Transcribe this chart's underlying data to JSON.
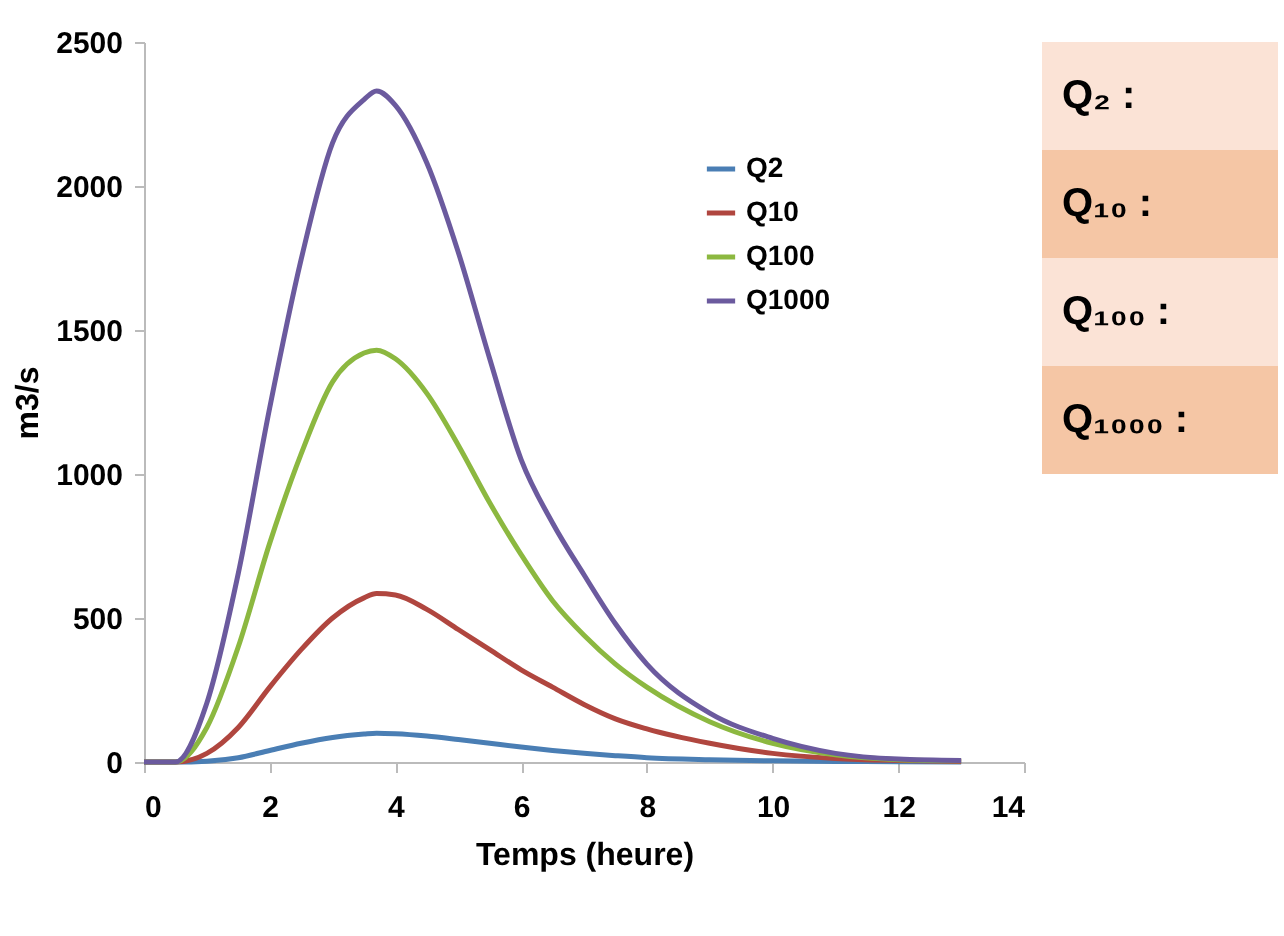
{
  "chart_data": {
    "type": "line",
    "xlabel": "Temps (heure)",
    "ylabel": "m3/s",
    "x": [
      0,
      0.5,
      1,
      1.5,
      2,
      2.5,
      3,
      3.5,
      3.7,
      4,
      4.5,
      5,
      5.5,
      6,
      6.5,
      7,
      7.5,
      8,
      9,
      10,
      11,
      12,
      13
    ],
    "series": [
      {
        "name": "Q2",
        "color": "#4a7eb4",
        "values": [
          0,
          0,
          3,
          15,
          40,
          65,
          85,
          97,
          100,
          98,
          90,
          78,
          65,
          52,
          40,
          30,
          22,
          15,
          8,
          4,
          2,
          1,
          0
        ]
      },
      {
        "name": "Q10",
        "color": "#b0463f",
        "values": [
          0,
          0,
          30,
          120,
          260,
          390,
          500,
          570,
          585,
          580,
          530,
          460,
          390,
          320,
          260,
          200,
          150,
          115,
          65,
          30,
          12,
          5,
          2
        ]
      },
      {
        "name": "Q100",
        "color": "#8cb840",
        "values": [
          0,
          0,
          120,
          400,
          760,
          1070,
          1320,
          1420,
          1430,
          1400,
          1280,
          1100,
          900,
          720,
          560,
          440,
          340,
          260,
          140,
          65,
          25,
          8,
          4
        ]
      },
      {
        "name": "Q1000",
        "color": "#6b5a9e",
        "values": [
          0,
          0,
          205,
          655,
          1230,
          1745,
          2150,
          2300,
          2330,
          2280,
          2080,
          1770,
          1400,
          1050,
          830,
          650,
          480,
          340,
          170,
          82,
          30,
          10,
          5
        ]
      }
    ],
    "xlim": [
      0,
      14
    ],
    "xticks": [
      0,
      2,
      4,
      6,
      8,
      10,
      12,
      14
    ],
    "ylim": [
      0,
      2500
    ],
    "yticks": [
      0,
      500,
      1000,
      1500,
      2000,
      2500
    ],
    "grid": false,
    "legend": "top right",
    "marker": "none",
    "line_style": "solid",
    "annotations": [
      "Q₂ :",
      "Q₁₀ :",
      "Q₁₀₀ :",
      "Q₁₀₀₀ :"
    ]
  }
}
